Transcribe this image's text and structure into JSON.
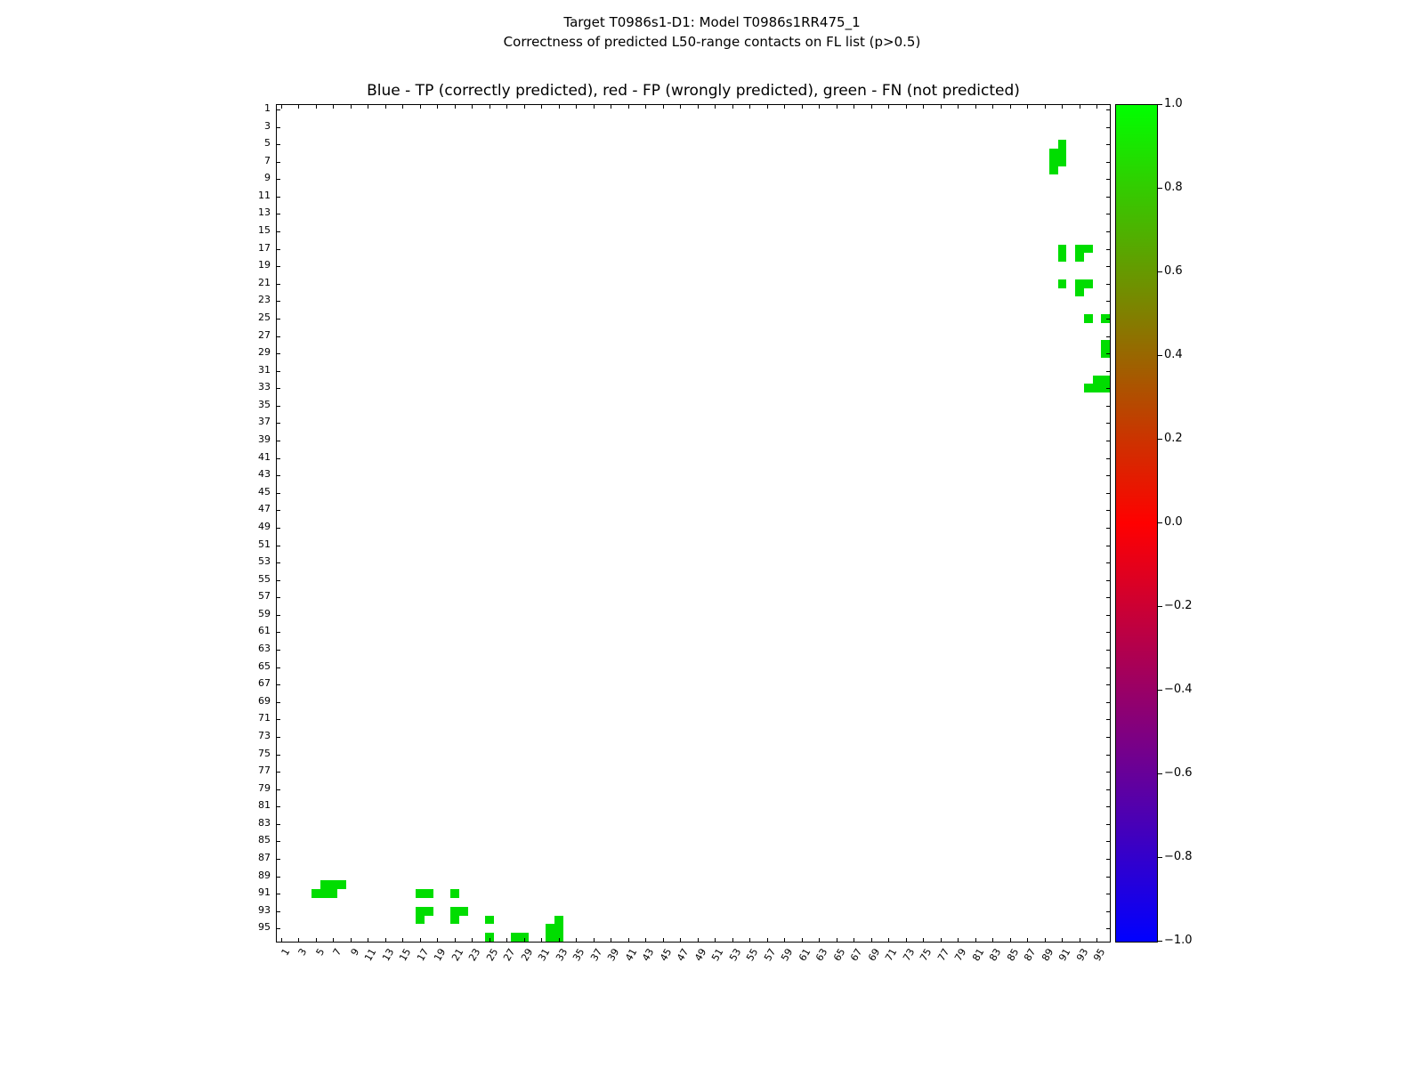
{
  "chart_data": {
    "type": "heatmap",
    "figure_title_line1": "Target T0986s1-D1: Model T0986s1RR475_1",
    "figure_title_line2": "Correctness of predicted L50-range contacts on FL list (p>0.5)",
    "axes_title": "Blue - TP (correctly predicted), red - FP (wrongly predicted), green - FN (not predicted)",
    "legend": [
      {
        "label": "TP (correctly predicted)",
        "color": "blue"
      },
      {
        "label": "FP (wrongly predicted)",
        "color": "red"
      },
      {
        "label": "FN (not predicted)",
        "color": "green"
      }
    ],
    "axis_range": [
      0.5,
      96.5
    ],
    "x_ticks": [
      1,
      3,
      5,
      7,
      9,
      11,
      13,
      15,
      17,
      19,
      21,
      23,
      25,
      27,
      29,
      31,
      33,
      35,
      37,
      39,
      41,
      43,
      45,
      47,
      49,
      51,
      53,
      55,
      57,
      59,
      61,
      63,
      65,
      67,
      69,
      71,
      73,
      75,
      77,
      79,
      81,
      83,
      85,
      87,
      89,
      91,
      93,
      95
    ],
    "y_ticks": [
      1,
      3,
      5,
      7,
      9,
      11,
      13,
      15,
      17,
      19,
      21,
      23,
      25,
      27,
      29,
      31,
      33,
      35,
      37,
      39,
      41,
      43,
      45,
      47,
      49,
      51,
      53,
      55,
      57,
      59,
      61,
      63,
      65,
      67,
      69,
      71,
      73,
      75,
      77,
      79,
      81,
      83,
      85,
      87,
      89,
      91,
      93,
      95
    ],
    "symmetric": true,
    "fn_color": "#00dd00",
    "fn_cells": [
      [
        5,
        91
      ],
      [
        6,
        90
      ],
      [
        6,
        91
      ],
      [
        7,
        90
      ],
      [
        7,
        91
      ],
      [
        8,
        90
      ],
      [
        17,
        91
      ],
      [
        18,
        91
      ],
      [
        17,
        93
      ],
      [
        17,
        94
      ],
      [
        18,
        93
      ],
      [
        21,
        91
      ],
      [
        21,
        93
      ],
      [
        21,
        94
      ],
      [
        22,
        93
      ],
      [
        25,
        94
      ],
      [
        25,
        96
      ],
      [
        28,
        96
      ],
      [
        29,
        96
      ],
      [
        32,
        95
      ],
      [
        32,
        96
      ],
      [
        33,
        94
      ],
      [
        33,
        95
      ],
      [
        33,
        96
      ]
    ],
    "colorbar": {
      "min": -1.0,
      "max": 1.0,
      "tick_labels": [
        "1.0",
        "0.8",
        "0.6",
        "0.4",
        "0.2",
        "0.0",
        "−0.2",
        "−0.4",
        "−0.6",
        "−0.8",
        "−1.0"
      ],
      "gradient": [
        "#00ff00",
        "#40bf00",
        "#808000",
        "#bf4000",
        "#ff0000",
        "#bf0040",
        "#800080",
        "#4000bf",
        "#0000ff"
      ]
    }
  }
}
